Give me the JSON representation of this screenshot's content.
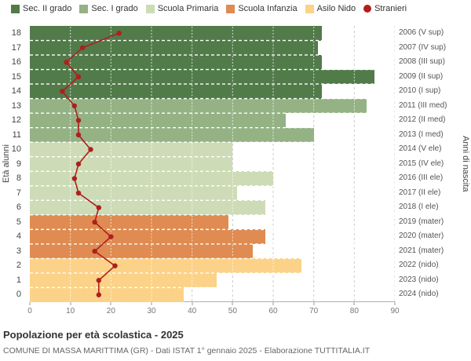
{
  "colors": {
    "grid": "#cccccc",
    "axis": "#b0b0b0",
    "background": "#ffffff",
    "title_text": "#333333",
    "subtitle_text": "#666666"
  },
  "legend": [
    {
      "label": "Sec. II grado",
      "color": "#527b4a",
      "shape": "square"
    },
    {
      "label": "Sec. I grado",
      "color": "#94b284",
      "shape": "square"
    },
    {
      "label": "Scuola Primaria",
      "color": "#cddcb6",
      "shape": "square"
    },
    {
      "label": "Scuola Infanzia",
      "color": "#df8b51",
      "shape": "square"
    },
    {
      "label": "Asilo Nido",
      "color": "#fbd287",
      "shape": "square"
    },
    {
      "label": "Stranieri",
      "color": "#b01e1e",
      "shape": "circle"
    }
  ],
  "chart_data": {
    "type": "bar",
    "orientation": "horizontal",
    "title": "Popolazione per età scolastica - 2025",
    "subtitle": "COMUNE DI MASSA MARITTIMA (GR) - Dati ISTAT 1° gennaio 2025 - Elaborazione TUTTITALIA.IT",
    "xlim": [
      0,
      90
    ],
    "x_ticks": [
      0,
      10,
      20,
      30,
      40,
      50,
      60,
      70,
      80,
      90
    ],
    "ylabel_left": "Età alunni",
    "ylabel_right": "Anni di nascita",
    "grid": true,
    "legend_position": "top",
    "series_note": "bars = total pupils per age; red line with dots = Stranieri (foreigners)",
    "rows": [
      {
        "age": 18,
        "birth_year_label": "2006 (V sup)",
        "group": "Sec. II grado",
        "value": 72,
        "stranieri": 22
      },
      {
        "age": 17,
        "birth_year_label": "2007 (IV sup)",
        "group": "Sec. II grado",
        "value": 71,
        "stranieri": 13
      },
      {
        "age": 16,
        "birth_year_label": "2008 (III sup)",
        "group": "Sec. II grado",
        "value": 72,
        "stranieri": 9
      },
      {
        "age": 15,
        "birth_year_label": "2009 (II sup)",
        "group": "Sec. II grado",
        "value": 85,
        "stranieri": 12
      },
      {
        "age": 14,
        "birth_year_label": "2010 (I sup)",
        "group": "Sec. II grado",
        "value": 72,
        "stranieri": 8
      },
      {
        "age": 13,
        "birth_year_label": "2011 (III med)",
        "group": "Sec. I grado",
        "value": 83,
        "stranieri": 11
      },
      {
        "age": 12,
        "birth_year_label": "2012 (II med)",
        "group": "Sec. I grado",
        "value": 63,
        "stranieri": 12
      },
      {
        "age": 11,
        "birth_year_label": "2013 (I med)",
        "group": "Sec. I grado",
        "value": 70,
        "stranieri": 12
      },
      {
        "age": 10,
        "birth_year_label": "2014 (V ele)",
        "group": "Scuola Primaria",
        "value": 50,
        "stranieri": 15
      },
      {
        "age": 9,
        "birth_year_label": "2015 (IV ele)",
        "group": "Scuola Primaria",
        "value": 50,
        "stranieri": 12
      },
      {
        "age": 8,
        "birth_year_label": "2016 (III ele)",
        "group": "Scuola Primaria",
        "value": 60,
        "stranieri": 11
      },
      {
        "age": 7,
        "birth_year_label": "2017 (II ele)",
        "group": "Scuola Primaria",
        "value": 51,
        "stranieri": 12
      },
      {
        "age": 6,
        "birth_year_label": "2018 (I ele)",
        "group": "Scuola Primaria",
        "value": 58,
        "stranieri": 17
      },
      {
        "age": 5,
        "birth_year_label": "2019 (mater)",
        "group": "Scuola Infanzia",
        "value": 49,
        "stranieri": 16
      },
      {
        "age": 4,
        "birth_year_label": "2020 (mater)",
        "group": "Scuola Infanzia",
        "value": 58,
        "stranieri": 20
      },
      {
        "age": 3,
        "birth_year_label": "2021 (mater)",
        "group": "Scuola Infanzia",
        "value": 55,
        "stranieri": 16
      },
      {
        "age": 2,
        "birth_year_label": "2022 (nido)",
        "group": "Asilo Nido",
        "value": 67,
        "stranieri": 21
      },
      {
        "age": 1,
        "birth_year_label": "2023 (nido)",
        "group": "Asilo Nido",
        "value": 46,
        "stranieri": 17
      },
      {
        "age": 0,
        "birth_year_label": "2024 (nido)",
        "group": "Asilo Nido",
        "value": 38,
        "stranieri": 17
      }
    ]
  }
}
